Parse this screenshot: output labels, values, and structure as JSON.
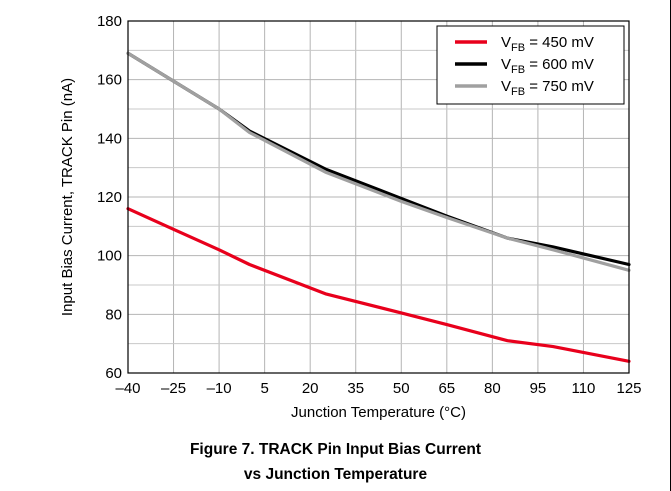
{
  "figure": {
    "caption_line1": "Figure 7. TRACK Pin Input Bias Current",
    "caption_line2": "vs Junction Temperature"
  },
  "chart_data": {
    "type": "line",
    "title": "",
    "xlabel": "Junction Temperature (°C)",
    "ylabel": "Input Bias Current, TRACK Pin (nA)",
    "xlim": [
      -40,
      125
    ],
    "ylim": [
      60,
      180
    ],
    "xticks": [
      -40,
      -25,
      -10,
      5,
      20,
      35,
      50,
      65,
      80,
      95,
      110,
      125
    ],
    "xtick_labels": [
      "–40",
      "–25",
      "–10",
      "5",
      "20",
      "35",
      "50",
      "65",
      "80",
      "95",
      "110",
      "125"
    ],
    "yticks": [
      60,
      80,
      100,
      120,
      140,
      160,
      180
    ],
    "grid": true,
    "legend_position": "top-right",
    "series": [
      {
        "label_main": "V",
        "label_sub": "FB",
        "label_rest": " = 450 mV",
        "color": "#e8001c",
        "x": [
          -40,
          -25,
          -10,
          0,
          25,
          50,
          65,
          85,
          100,
          125
        ],
        "y": [
          116,
          109,
          102,
          97,
          87,
          80.5,
          76.5,
          71,
          69,
          64
        ]
      },
      {
        "label_main": "V",
        "label_sub": "FB",
        "label_rest": " = 600 mV",
        "color": "#000000",
        "x": [
          -40,
          -25,
          -10,
          0,
          25,
          50,
          65,
          85,
          100,
          125
        ],
        "y": [
          169,
          159.5,
          150,
          142.5,
          129.5,
          119.5,
          113.5,
          106,
          103,
          97
        ]
      },
      {
        "label_main": "V",
        "label_sub": "FB",
        "label_rest": " = 750 mV",
        "color": "#a0a0a0",
        "x": [
          -40,
          -25,
          -10,
          0,
          25,
          50,
          65,
          85,
          100,
          125
        ],
        "y": [
          169,
          159.5,
          150,
          142,
          128.5,
          118.5,
          113,
          106,
          102,
          95
        ]
      }
    ]
  }
}
